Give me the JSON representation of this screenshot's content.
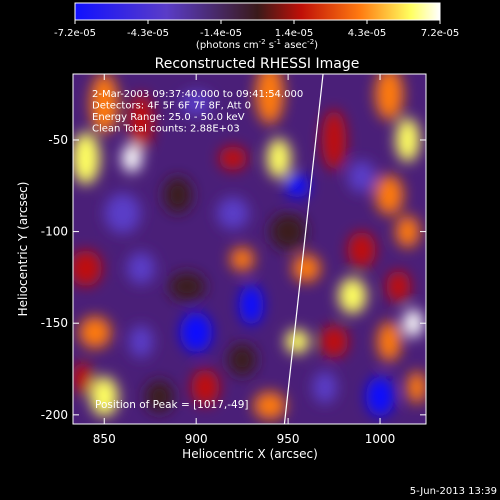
{
  "colorbar": {
    "ticks": [
      "-7.2e-05",
      "-4.3e-05",
      "-1.4e-05",
      "1.4e-05",
      "4.3e-05",
      "7.2e-05"
    ],
    "units_parts": [
      "(photons cm",
      "-2",
      " s",
      "-1",
      " asec",
      "-2",
      ")"
    ],
    "colors": [
      "#1010ff",
      "#5a3cc8",
      "#3a1a1a",
      "#c01008",
      "#ff7a10",
      "#ffff60",
      "#ffffff"
    ]
  },
  "title": "Reconstructed RHESSI Image",
  "annotations": [
    "2-Mar-2003 09:37:40.000 to 09:41:54.000",
    "Detectors: 4F 5F 6F 7F 8F, Att 0",
    "Energy Range: 25.0 - 50.0 keV",
    "Clean     Total counts: 2.88E+03"
  ],
  "peak_text": "Position of Peak = [1017,-49]",
  "footer_date": "5-Jun-2013 13:39",
  "chart_data": {
    "type": "heatmap",
    "title": "Reconstructed RHESSI Image",
    "xlabel": "Heliocentric X (arcsec)",
    "ylabel": "Heliocentric Y (arcsec)",
    "xlim": [
      833,
      1025
    ],
    "ylim": [
      -205,
      -14
    ],
    "x_ticks": [
      850,
      900,
      950,
      1000
    ],
    "y_ticks": [
      -50,
      -100,
      -150,
      -200
    ],
    "colorbar_range": [
      -7.2e-05,
      7.2e-05
    ],
    "peak": [
      1017,
      -49
    ],
    "limb_line": [
      [
        948,
        -205
      ],
      [
        969,
        -14
      ]
    ]
  }
}
